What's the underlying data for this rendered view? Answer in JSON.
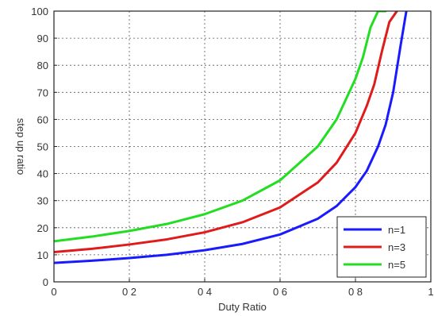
{
  "chart_data": {
    "type": "line",
    "xlabel": "Duty Ratio",
    "ylabel": "step up ratio",
    "xlim": [
      0,
      1
    ],
    "ylim": [
      0,
      100
    ],
    "xticks": [
      0,
      0.2,
      0.4,
      0.6,
      0.8,
      1
    ],
    "xtick_labels": [
      "0",
      "0 2",
      "0 4",
      "0 6",
      "0 8",
      "1"
    ],
    "yticks": [
      0,
      10,
      20,
      30,
      40,
      50,
      60,
      70,
      80,
      90,
      100
    ],
    "ytick_labels": [
      "0",
      "10",
      "20",
      "30",
      "40",
      "50",
      "60",
      "70",
      "80",
      "90",
      "100"
    ],
    "grid": true,
    "legend_position": "bottom-right",
    "series": [
      {
        "name": "n=1",
        "color": "#1a1aff",
        "x": [
          0,
          0.1,
          0.2,
          0.3,
          0.4,
          0.5,
          0.6,
          0.7,
          0.75,
          0.8,
          0.83,
          0.86,
          0.88,
          0.9,
          0.92,
          0.935
        ],
        "y": [
          7,
          7.8,
          8.8,
          10,
          11.7,
          14,
          17.5,
          23.3,
          28,
          35,
          41,
          50,
          58,
          70,
          87.5,
          100
        ]
      },
      {
        "name": "n=3",
        "color": "#e01b1b",
        "x": [
          0,
          0.1,
          0.2,
          0.3,
          0.4,
          0.5,
          0.6,
          0.7,
          0.75,
          0.8,
          0.83,
          0.85,
          0.87,
          0.89,
          0.91
        ],
        "y": [
          11,
          12.2,
          13.8,
          15.7,
          18.3,
          22,
          27.5,
          36.7,
          44,
          55,
          65,
          73,
          85,
          96,
          100
        ]
      },
      {
        "name": "n=5",
        "color": "#22dd22",
        "x": [
          0,
          0.1,
          0.2,
          0.3,
          0.4,
          0.5,
          0.6,
          0.7,
          0.75,
          0.8,
          0.82,
          0.84,
          0.86,
          0.88
        ],
        "y": [
          15,
          16.7,
          18.8,
          21.4,
          25,
          30,
          37.5,
          50,
          60,
          75,
          83,
          94,
          100,
          100
        ]
      }
    ]
  }
}
